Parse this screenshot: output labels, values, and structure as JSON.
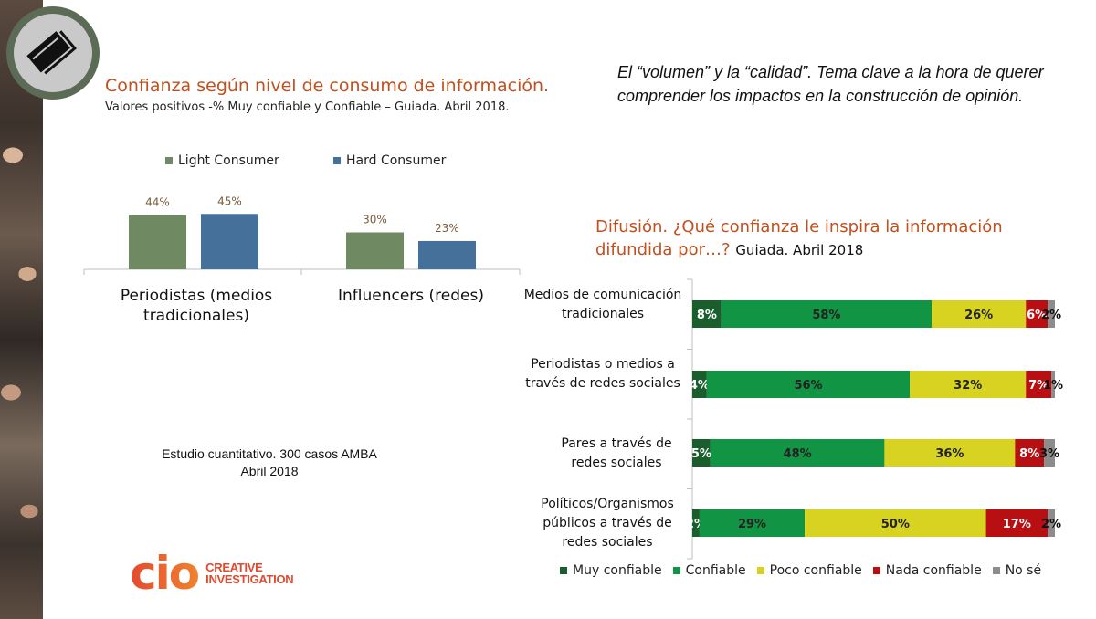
{
  "left_title": "Confianza según nivel de consumo de información.",
  "left_subtitle": "Valores positivos   -% Muy confiable y Confiable – Guiada. Abril 2018.",
  "right_quote": "El “volumen” y la “calidad”. Tema clave a la hora de querer comprender los impactos en la construcción de opinión.",
  "chart2_title": "Difusión. ¿Qué confianza le inspira la información difundida por…?",
  "chart2_title_suffix": "Guiada. Abril 2018",
  "study_line1": "Estudio cuantitativo. 300 casos AMBA",
  "study_line2": "Abril 2018",
  "brand": {
    "name": "cio",
    "line1": "CREATIVE",
    "line2": "INVESTIGATION"
  },
  "colors": {
    "title_orange": "#c0501e",
    "light_consumer": "#6f8a63",
    "hard_consumer": "#44709a",
    "muy_confiable": "#1a5e2e",
    "confiable": "#119443",
    "poco_confiable": "#d8d320",
    "nada_confiable": "#b80f12",
    "no_se": "#8c8c8c"
  },
  "chart_data": [
    {
      "type": "bar",
      "categories": [
        "Periodistas (medios tradicionales)",
        "Influencers (redes)"
      ],
      "series": [
        {
          "name": "Light Consumer",
          "values": [
            44,
            30
          ],
          "labels": [
            "44%",
            "30%"
          ]
        },
        {
          "name": "Hard Consumer",
          "values": [
            45,
            23
          ],
          "labels": [
            "45%",
            "23%"
          ]
        }
      ],
      "ylim": [
        0,
        100
      ],
      "legend": "top"
    },
    {
      "type": "bar",
      "orientation": "horizontal-stacked-100",
      "categories": [
        "Medios de comunicación tradicionales",
        "Periodistas o medios a través de redes sociales",
        "Pares a través de redes sociales",
        "Políticos/Organismos públicos a través de redes sociales"
      ],
      "series": [
        {
          "name": "Muy confiable",
          "values": [
            8,
            4,
            5,
            2
          ],
          "labels": [
            "8%",
            "4%",
            "5%",
            "2%"
          ]
        },
        {
          "name": "Confiable",
          "values": [
            58,
            56,
            48,
            29
          ],
          "labels": [
            "58%",
            "56%",
            "48%",
            "29%"
          ]
        },
        {
          "name": "Poco confiable",
          "values": [
            26,
            32,
            36,
            50
          ],
          "labels": [
            "26%",
            "32%",
            "36%",
            "50%"
          ]
        },
        {
          "name": "Nada confiable",
          "values": [
            6,
            7,
            8,
            17
          ],
          "labels": [
            "6%",
            "7%",
            "8%",
            "17%"
          ]
        },
        {
          "name": "No sé",
          "values": [
            2,
            1,
            3,
            2
          ],
          "labels": [
            "2%",
            "1%",
            "3%",
            "2%"
          ]
        }
      ],
      "xlim": [
        0,
        100
      ],
      "legend": "bottom"
    }
  ]
}
